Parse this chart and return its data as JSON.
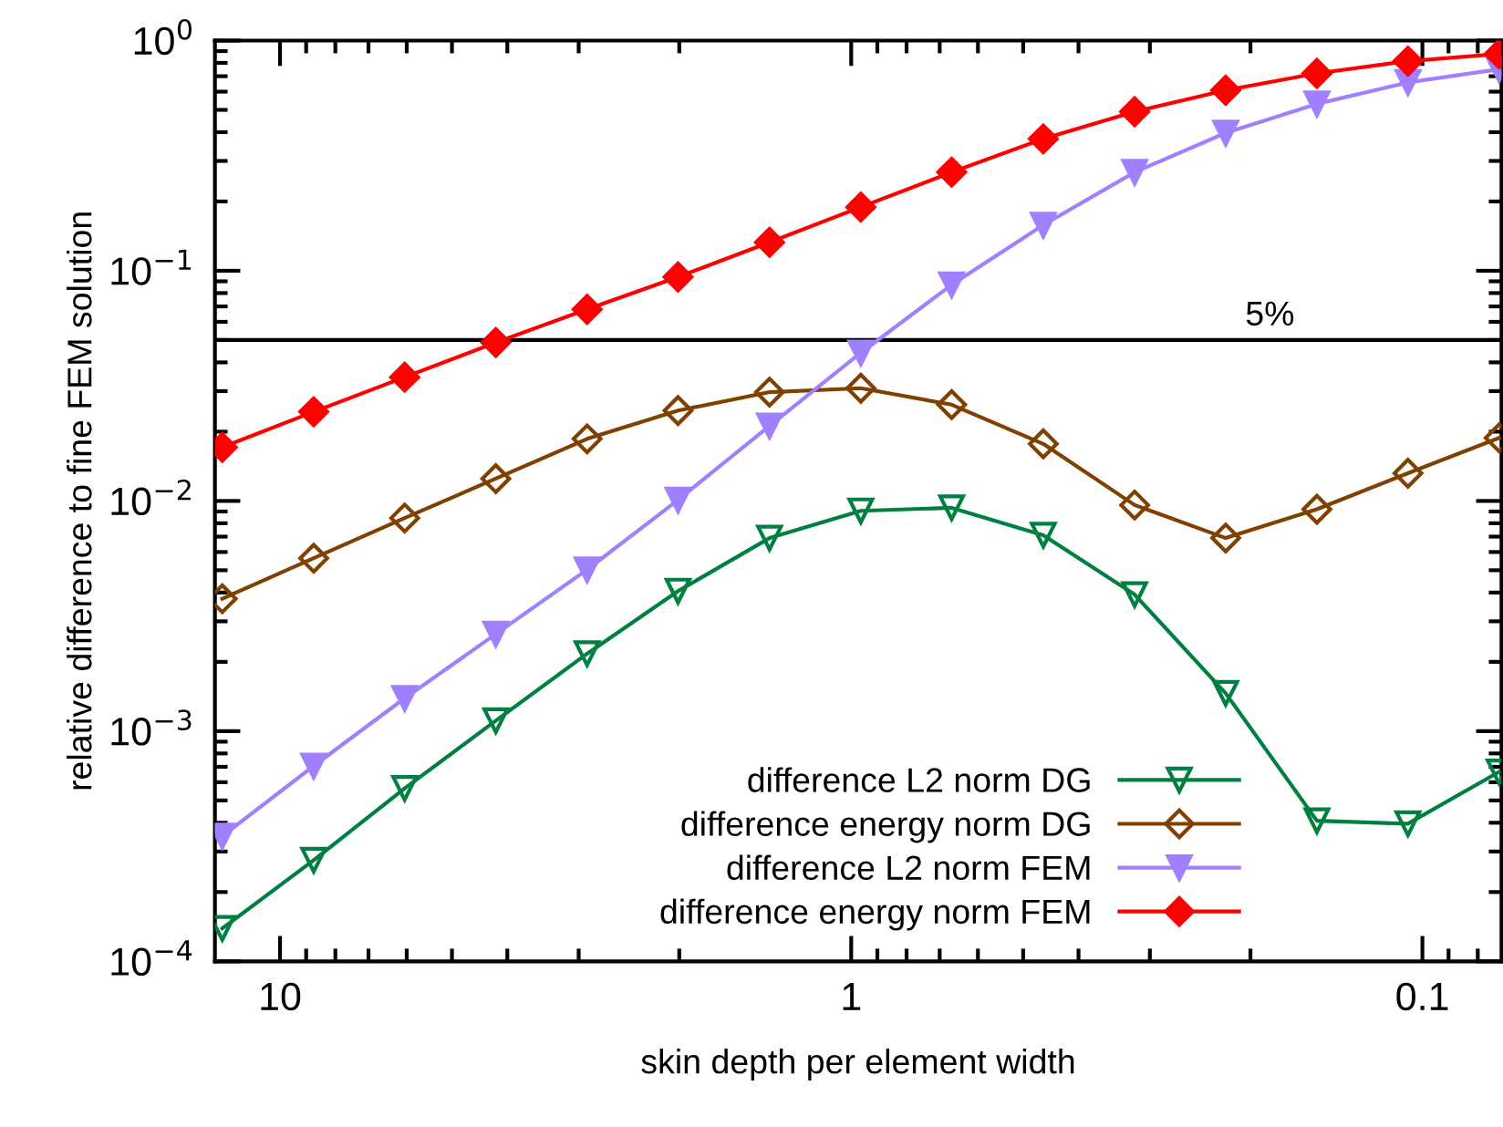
{
  "chart_data": {
    "type": "line",
    "xlabel": "skin depth per element width",
    "ylabel": "relative difference to fine FEM solution",
    "log": "xy",
    "x": [
      12.62,
      8.73,
      6.05,
      4.19,
      2.9,
      2.01,
      1.39,
      0.962,
      0.667,
      0.461,
      0.319,
      0.221,
      0.153,
      0.106,
      0.0734
    ],
    "xlim": [
      13.0,
      0.0727
    ],
    "xticks": [
      10,
      1,
      0.1
    ],
    "ylim": [
      0.0001,
      1
    ],
    "yticks": [
      {
        "value": 0.0001,
        "label": "10$^{−4}$"
      },
      {
        "value": 0.001,
        "label": "10$^{−3}$"
      },
      {
        "value": 0.01,
        "label": "10$^{−2}$"
      },
      {
        "value": 0.1,
        "label": "10$^{−1}$"
      },
      {
        "value": 1,
        "label": "10$^{0}$"
      }
    ],
    "grid": false,
    "legend": "bottom right",
    "line_style": "solid",
    "series": [
      {
        "name": "difference L2 norm DG",
        "color": "#008040",
        "marker": "triangle",
        "values": [
          0.000139,
          0.000275,
          0.000564,
          0.00111,
          0.00217,
          0.00406,
          0.0069,
          0.00906,
          0.00934,
          0.0071,
          0.00392,
          0.00146,
          0.000408,
          0.000396,
          0.000665
        ]
      },
      {
        "name": "difference energy norm DG",
        "color": "#804000",
        "marker": "diamond",
        "values": [
          0.00376,
          0.00564,
          0.00843,
          0.0125,
          0.0186,
          0.0247,
          0.0297,
          0.0309,
          0.0262,
          0.0177,
          0.0096,
          0.0069,
          0.0092,
          0.0132,
          0.0188
        ]
      },
      {
        "name": "difference L2 norm FEM",
        "color": "#a080ff",
        "marker": "triangle",
        "values": [
          0.00035,
          0.000706,
          0.00139,
          0.00264,
          0.00503,
          0.0101,
          0.0212,
          0.044,
          0.0869,
          0.158,
          0.268,
          0.397,
          0.531,
          0.658,
          0.751
        ]
      },
      {
        "name": "difference energy norm FEM",
        "color": "#ff0000",
        "marker": "diamond",
        "values": [
          0.0171,
          0.0244,
          0.0345,
          0.0488,
          0.068,
          0.094,
          0.133,
          0.189,
          0.268,
          0.374,
          0.491,
          0.608,
          0.72,
          0.814,
          0.875
        ]
      }
    ],
    "ref_lines": [
      {
        "axis": "y",
        "value": 0.05,
        "label": "5%",
        "color": "#000000"
      }
    ]
  }
}
